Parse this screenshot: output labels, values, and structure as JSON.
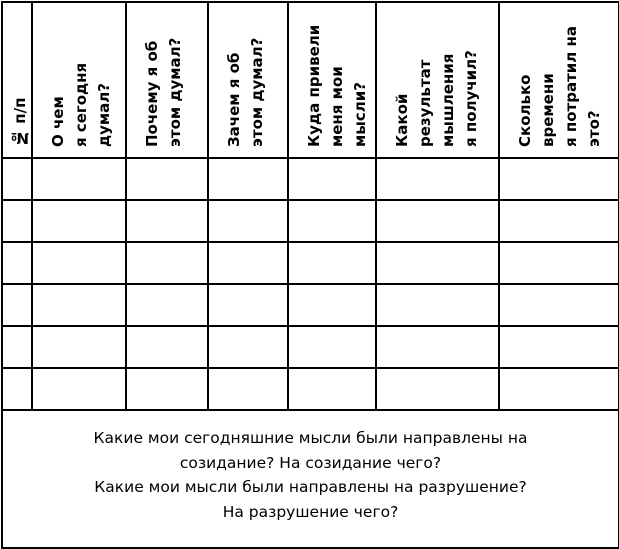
{
  "table": {
    "headers": [
      "№ п/п",
      "О чем\nя сегодня\nдумал?",
      "Почему я об\nэтом думал?",
      "Зачем я об\nэтом думал?",
      "Куда привели\nменя мои\nмысли?",
      "Какой\nрезультат\nмышления\nя получил?",
      "Сколько\nвремени\nя потратил на\nэто?"
    ],
    "empty_rows": 6
  },
  "footer": {
    "lines": [
      "Какие мои сегодняшние мысли были направлены на",
      "созидание? На созидание чего?",
      "Какие мои мысли были направлены на разрушение?",
      "На разрушение чего?"
    ]
  }
}
